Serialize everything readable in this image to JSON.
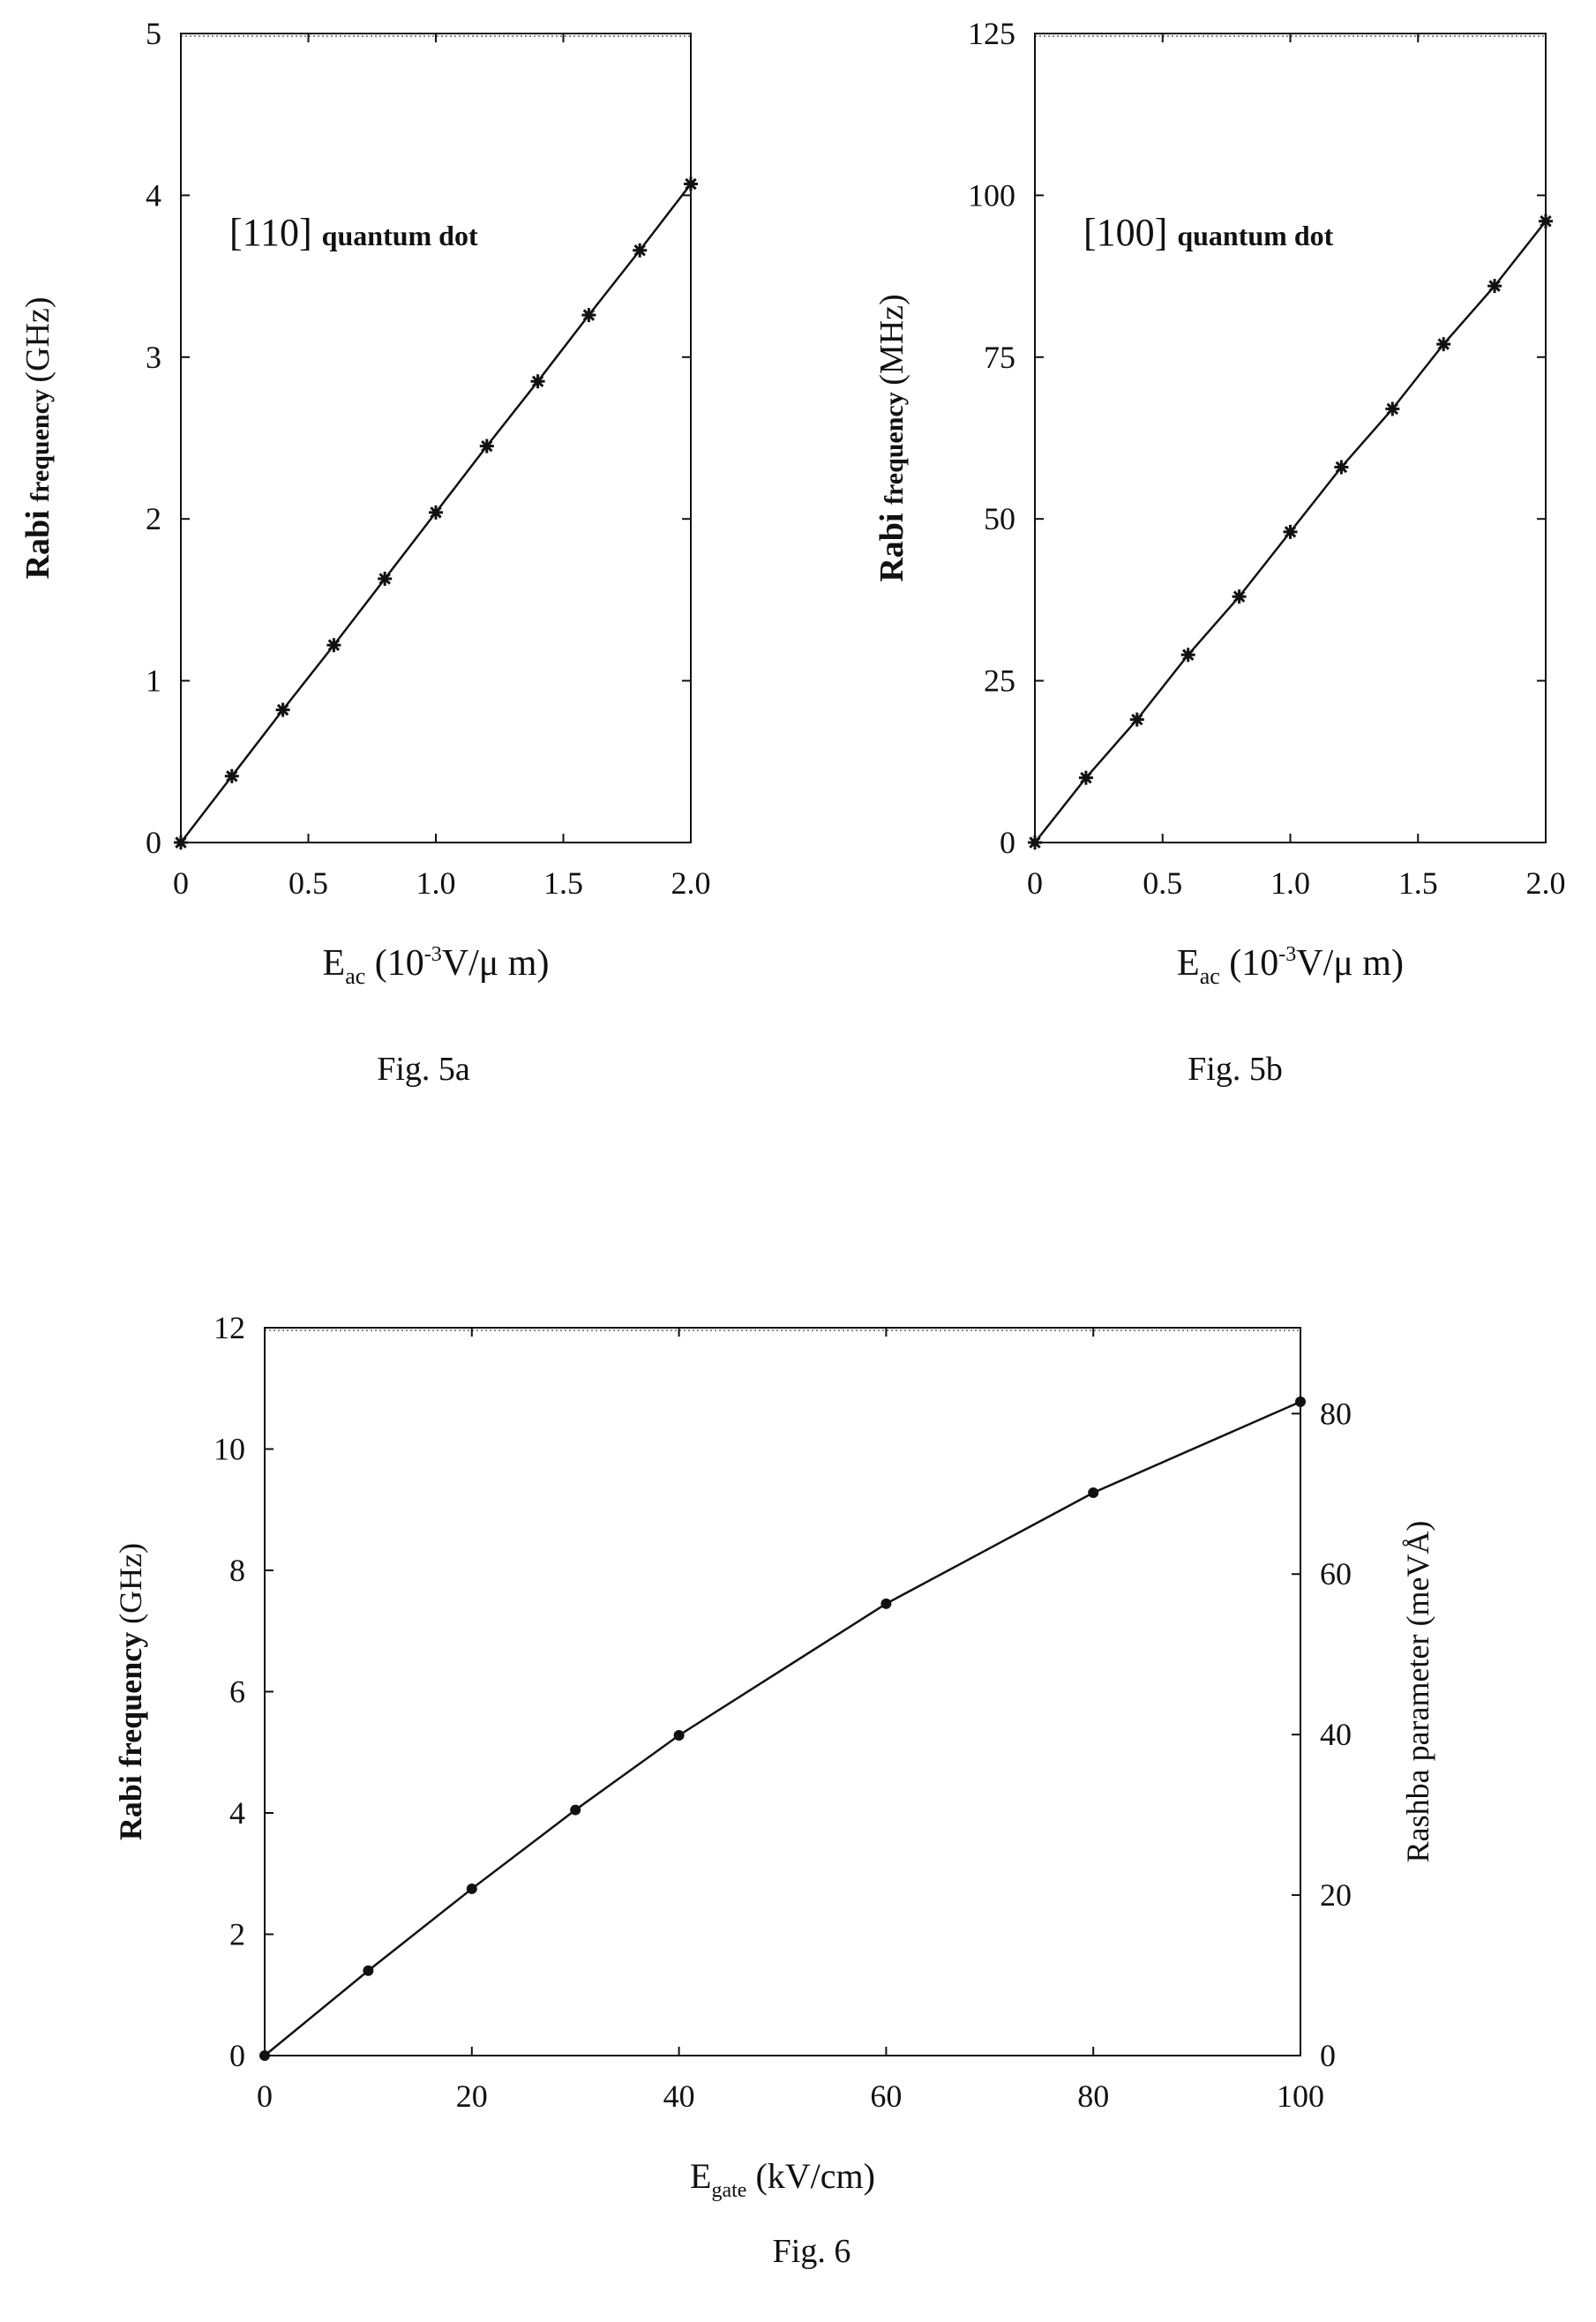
{
  "colors": {
    "ink": "#111111",
    "background": "#ffffff"
  },
  "chart_data": [
    {
      "type": "line",
      "caption": "Fig. 5a",
      "annotation": {
        "bracket": "[110]",
        "text": "quantum dot"
      },
      "xlabel": {
        "main": "E",
        "sub": "ac",
        "rest": " (10",
        "sup": "-3",
        "tail": "V/μ m)"
      },
      "ylabel": {
        "main": "Rabi",
        "sub": "frequency",
        "unit": "(GHz)"
      },
      "xlim": [
        0,
        2.0
      ],
      "ylim": [
        0,
        5
      ],
      "xticks": [
        "0",
        "0.5",
        "1.0",
        "1.5",
        "2.0"
      ],
      "xtick_values": [
        0,
        0.5,
        1.0,
        1.5,
        2.0
      ],
      "yticks": [
        "0",
        "1",
        "2",
        "3",
        "4",
        "5"
      ],
      "ytick_values": [
        0,
        1,
        2,
        3,
        4,
        5
      ],
      "marker": "star",
      "x": [
        0,
        0.2,
        0.4,
        0.6,
        0.8,
        1.0,
        1.2,
        1.4,
        1.6,
        1.8,
        2.0
      ],
      "y": [
        0,
        0.41,
        0.82,
        1.22,
        1.63,
        2.04,
        2.45,
        2.85,
        3.26,
        3.66,
        4.07
      ]
    },
    {
      "type": "line",
      "caption": "Fig. 5b",
      "annotation": {
        "bracket": "[100]",
        "text": "quantum dot"
      },
      "xlabel": {
        "main": "E",
        "sub": "ac",
        "rest": " (10",
        "sup": "-3",
        "tail": "V/μ m)"
      },
      "ylabel": {
        "main": "Rabi",
        "sub": "frequency",
        "unit": "(MHz)"
      },
      "xlim": [
        0,
        2.0
      ],
      "ylim": [
        0,
        125
      ],
      "xticks": [
        "0",
        "0.5",
        "1.0",
        "1.5",
        "2.0"
      ],
      "xtick_values": [
        0,
        0.5,
        1.0,
        1.5,
        2.0
      ],
      "yticks": [
        "0",
        "25",
        "50",
        "75",
        "100",
        "125"
      ],
      "ytick_values": [
        0,
        25,
        50,
        75,
        100,
        125
      ],
      "marker": "star",
      "x": [
        0,
        0.2,
        0.4,
        0.6,
        0.8,
        1.0,
        1.2,
        1.4,
        1.6,
        1.8,
        2.0
      ],
      "y": [
        0,
        10,
        19,
        29,
        38,
        48,
        58,
        67,
        77,
        86,
        96
      ]
    },
    {
      "type": "line",
      "caption": "Fig. 6",
      "xlabel": {
        "main": "E",
        "sub": "gate",
        "rest": " (kV/cm)"
      },
      "ylabel": {
        "main": "Rabi frequency",
        "unit": "(GHz)"
      },
      "y2label": {
        "main": "Rashba parameter",
        "unit": "(meVÅ)"
      },
      "xlim": [
        0,
        100
      ],
      "ylim": [
        0,
        12
      ],
      "y2lim": [
        0,
        90.7
      ],
      "xticks": [
        "0",
        "20",
        "40",
        "60",
        "80",
        "100"
      ],
      "xtick_values": [
        0,
        20,
        40,
        60,
        80,
        100
      ],
      "yticks": [
        "0",
        "2",
        "4",
        "6",
        "8",
        "10",
        "12"
      ],
      "ytick_values": [
        0,
        2,
        4,
        6,
        8,
        10,
        12
      ],
      "y2ticks": [
        "0",
        "20",
        "40",
        "60",
        "80"
      ],
      "y2tick_values": [
        0,
        20,
        40,
        60,
        80
      ],
      "marker": "dot",
      "x": [
        0,
        10,
        20,
        30,
        40,
        60,
        80,
        100
      ],
      "y": [
        0,
        1.4,
        2.75,
        4.05,
        5.28,
        7.45,
        9.28,
        10.78
      ]
    }
  ]
}
